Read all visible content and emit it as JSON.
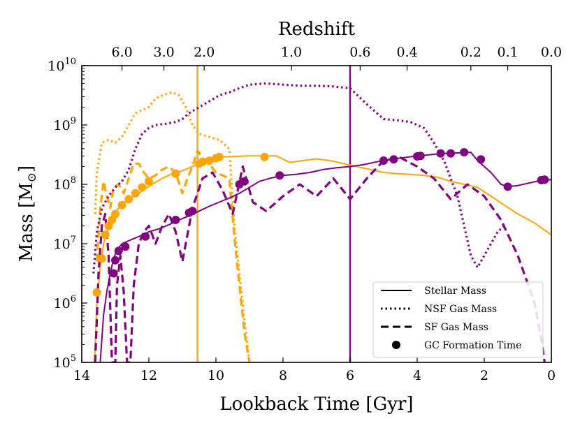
{
  "chart_data": {
    "type": "line",
    "xlabel": "Lookback Time [Gyr]",
    "ylabel": "Mass [M",
    "ylabel_sub": "⊙",
    "ylabel_close": "]",
    "top_axis_label": "Redshift",
    "xlim": [
      14,
      0
    ],
    "ylim_log10": [
      5,
      10
    ],
    "x_ticks": [
      14,
      12,
      10,
      8,
      6,
      4,
      2,
      0
    ],
    "y_ticks": [
      {
        "exp": 5,
        "base": "10",
        "sup": "5"
      },
      {
        "exp": 6,
        "base": "10",
        "sup": "6"
      },
      {
        "exp": 7,
        "base": "10",
        "sup": "7"
      },
      {
        "exp": 8,
        "base": "10",
        "sup": "8"
      },
      {
        "exp": 9,
        "base": "10",
        "sup": "9"
      },
      {
        "exp": 10,
        "base": "10",
        "sup": "10"
      }
    ],
    "redshift_ticks": [
      {
        "label": "6.0",
        "t": 12.8
      },
      {
        "label": "3.0",
        "t": 11.55
      },
      {
        "label": "2.0",
        "t": 10.35
      },
      {
        "label": "1.0",
        "t": 7.75
      },
      {
        "label": "0.6",
        "t": 5.7
      },
      {
        "label": "0.4",
        "t": 4.3
      },
      {
        "label": "0.2",
        "t": 2.4
      },
      {
        "label": "0.1",
        "t": 1.3
      },
      {
        "label": "0.0",
        "t": 0.0
      }
    ],
    "vlines": [
      {
        "t": 10.55,
        "color": "#FFA500"
      },
      {
        "t": 6.0,
        "color": "#800080"
      }
    ],
    "legend": {
      "position": "lower-right",
      "entries": [
        {
          "label": "Stellar Mass",
          "style": "solid"
        },
        {
          "label": "NSF Gas Mass",
          "style": "dotted"
        },
        {
          "label": "SF Gas Mass",
          "style": "dashed"
        },
        {
          "label": "GC Formation Time",
          "style": "marker"
        }
      ]
    },
    "series": [
      {
        "name": "orange-stellar",
        "color": "#FFA500",
        "style": "solid",
        "t": [
          13.62,
          13.55,
          13.45,
          13.35,
          13.25,
          13.15,
          13.05,
          12.9,
          12.7,
          12.5,
          12.3,
          12.1,
          11.9,
          11.6,
          11.3,
          11.0,
          10.7,
          10.4,
          10.1,
          9.8,
          9.4,
          9.0,
          8.6,
          8.2,
          7.8,
          7.4,
          7.0,
          6.6,
          6.2,
          5.8,
          5.4,
          5.0,
          4.6,
          4.2,
          3.8,
          3.4,
          3.0,
          2.6,
          2.2,
          1.8,
          1.4,
          1.0,
          0.5,
          0.0
        ],
        "log": [
          5.0,
          6.0,
          6.6,
          7.0,
          7.2,
          7.37,
          7.5,
          7.6,
          7.7,
          7.78,
          7.85,
          7.93,
          8.0,
          8.1,
          8.18,
          8.23,
          8.3,
          8.37,
          8.43,
          8.46,
          8.47,
          8.48,
          8.48,
          8.48,
          8.37,
          8.4,
          8.43,
          8.4,
          8.35,
          8.3,
          8.25,
          8.2,
          8.18,
          8.17,
          8.15,
          8.12,
          8.05,
          8.0,
          7.95,
          7.8,
          7.65,
          7.5,
          7.35,
          7.15
        ]
      },
      {
        "name": "orange-nsf",
        "color": "#FFA500",
        "style": "dotted",
        "t": [
          13.6,
          13.55,
          13.4,
          13.2,
          13.0,
          12.8,
          12.6,
          12.4,
          12.2,
          12.0,
          11.8,
          11.5,
          11.3,
          11.1,
          10.9,
          10.7,
          10.5,
          10.2,
          9.9,
          9.6,
          9.45,
          9.3,
          9.15,
          9.0
        ],
        "log": [
          7.5,
          8.2,
          8.7,
          8.75,
          8.7,
          8.8,
          9.0,
          9.2,
          9.25,
          9.3,
          9.45,
          9.52,
          9.55,
          9.5,
          9.3,
          9.0,
          8.85,
          8.8,
          8.75,
          8.6,
          7.3,
          6.5,
          5.7,
          5.0
        ]
      },
      {
        "name": "orange-sf",
        "color": "#FFA500",
        "style": "dashed",
        "t": [
          13.55,
          13.45,
          13.35,
          13.25,
          13.15,
          13.05,
          12.9,
          12.75,
          12.6,
          12.45,
          12.3,
          12.15,
          12.0,
          11.8,
          11.6,
          11.4,
          11.2,
          11.0,
          10.85,
          10.7,
          10.55,
          10.4,
          10.2,
          10.0,
          9.8,
          9.6,
          9.45,
          9.3,
          9.15,
          9.0
        ],
        "log": [
          6.7,
          7.6,
          8.05,
          7.8,
          7.6,
          7.95,
          8.0,
          7.85,
          8.1,
          8.35,
          8.35,
          8.2,
          8.1,
          8.15,
          8.25,
          8.3,
          8.2,
          7.85,
          8.1,
          8.3,
          8.57,
          8.45,
          8.35,
          8.2,
          8.15,
          8.1,
          7.1,
          6.3,
          5.5,
          5.0
        ]
      },
      {
        "name": "purple-stellar",
        "color": "#800080",
        "style": "solid",
        "t": [
          13.45,
          13.35,
          13.25,
          13.15,
          13.05,
          12.95,
          12.8,
          12.6,
          12.3,
          12.0,
          11.7,
          11.4,
          11.1,
          10.8,
          10.5,
          10.2,
          9.9,
          9.6,
          9.3,
          9.0,
          8.7,
          8.4,
          8.0,
          7.6,
          7.2,
          6.8,
          6.4,
          6.0,
          5.6,
          5.2,
          4.8,
          4.4,
          4.0,
          3.6,
          3.2,
          2.8,
          2.4,
          2.2,
          1.8,
          1.5,
          1.3,
          1.0,
          0.6,
          0.3,
          0.0
        ],
        "log": [
          5.0,
          5.8,
          6.2,
          6.5,
          6.75,
          6.9,
          7.0,
          7.05,
          7.12,
          7.2,
          7.25,
          7.32,
          7.4,
          7.47,
          7.55,
          7.63,
          7.7,
          7.77,
          7.85,
          7.95,
          8.05,
          8.1,
          8.15,
          8.17,
          8.2,
          8.25,
          8.28,
          8.3,
          8.33,
          8.38,
          8.42,
          8.45,
          8.48,
          8.5,
          8.52,
          8.53,
          8.54,
          8.4,
          8.2,
          8.0,
          7.96,
          7.98,
          8.03,
          8.07,
          8.08
        ]
      },
      {
        "name": "purple-nsf",
        "color": "#800080",
        "style": "dotted",
        "t": [
          13.65,
          13.55,
          13.4,
          13.2,
          13.0,
          12.8,
          12.6,
          12.4,
          12.2,
          12.0,
          11.8,
          11.5,
          11.2,
          11.0,
          10.8,
          10.5,
          10.2,
          9.9,
          9.6,
          9.3,
          9.0,
          8.5,
          8.0,
          7.5,
          7.0,
          6.5,
          6.0,
          5.5,
          5.0,
          4.6,
          4.2,
          3.8,
          3.5,
          3.2,
          3.0,
          2.8,
          2.6,
          2.4,
          2.2,
          2.0,
          1.8,
          1.6,
          1.4
        ],
        "log": [
          6.5,
          7.2,
          7.6,
          7.8,
          7.95,
          8.05,
          8.25,
          8.6,
          8.85,
          8.95,
          9.0,
          9.02,
          9.05,
          9.1,
          9.2,
          9.3,
          9.4,
          9.5,
          9.55,
          9.62,
          9.68,
          9.7,
          9.68,
          9.66,
          9.66,
          9.65,
          9.62,
          9.35,
          9.1,
          9.08,
          9.05,
          8.95,
          8.7,
          8.4,
          8.1,
          7.8,
          7.3,
          6.8,
          6.6,
          6.8,
          7.0,
          7.2,
          7.3
        ]
      },
      {
        "name": "purple-sf",
        "color": "#800080",
        "style": "dashed",
        "t": [
          13.6,
          13.5,
          13.4,
          13.3,
          13.2,
          13.1,
          13.0,
          12.95,
          12.85,
          12.75,
          12.65,
          12.55,
          12.45,
          12.3,
          12.15,
          12.0,
          11.8,
          11.6,
          11.4,
          11.2,
          11.0,
          10.7,
          10.4,
          10.1,
          9.8,
          9.5,
          9.2,
          8.9,
          8.5,
          8.0,
          7.5,
          7.0,
          6.5,
          6.0,
          5.5,
          5.0,
          4.5,
          4.0,
          3.5,
          3.0,
          2.5,
          2.0,
          1.5,
          1.0,
          0.5,
          0.3,
          0.2
        ],
        "log": [
          5.0,
          6.5,
          7.3,
          7.5,
          6.8,
          5.0,
          5.0,
          6.3,
          6.8,
          6.2,
          5.0,
          5.0,
          6.3,
          7.0,
          7.2,
          7.3,
          7.0,
          7.3,
          7.5,
          7.2,
          6.7,
          7.6,
          8.1,
          8.2,
          7.9,
          7.5,
          8.3,
          7.7,
          7.55,
          7.8,
          8.0,
          7.8,
          8.1,
          7.75,
          8.1,
          8.4,
          8.45,
          8.3,
          8.1,
          7.75,
          8.0,
          7.8,
          7.4,
          6.8,
          6.0,
          5.4,
          5.0
        ]
      }
    ],
    "gc_points": [
      {
        "color": "#FFA500",
        "t": [
          13.55,
          13.4,
          13.3,
          13.2,
          13.1,
          13.0,
          12.8,
          12.6,
          12.4,
          12.2,
          12.0,
          11.2,
          10.5,
          10.4,
          10.2,
          10.0,
          9.9,
          8.55
        ],
        "log": [
          6.18,
          6.75,
          7.15,
          7.3,
          7.4,
          7.5,
          7.65,
          7.75,
          7.85,
          7.95,
          8.05,
          8.18,
          8.35,
          8.38,
          8.4,
          8.44,
          8.46,
          8.46
        ]
      },
      {
        "color": "#800080",
        "t": [
          13.05,
          13.0,
          12.9,
          12.7,
          12.1,
          11.2,
          10.8,
          10.7,
          9.3,
          9.15,
          8.1,
          5.0,
          4.7,
          4.0,
          3.9,
          3.3,
          3.0,
          2.6,
          2.1,
          1.3,
          0.3,
          0.2
        ],
        "log": [
          6.5,
          6.72,
          6.88,
          6.95,
          7.12,
          7.4,
          7.52,
          7.55,
          8.0,
          8.05,
          8.15,
          8.4,
          8.42,
          8.47,
          8.48,
          8.52,
          8.52,
          8.54,
          8.42,
          7.96,
          8.07,
          8.08
        ]
      }
    ]
  }
}
